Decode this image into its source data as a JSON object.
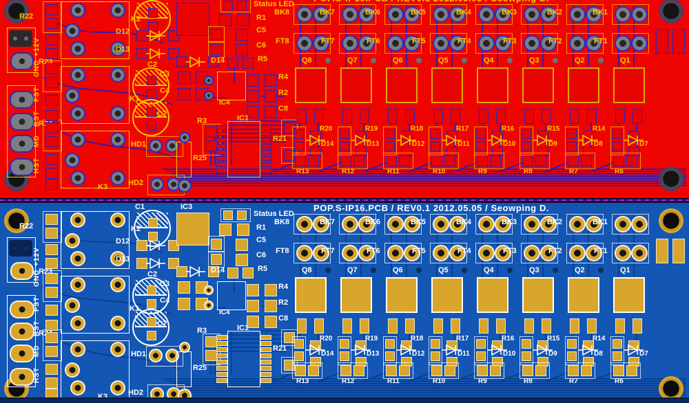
{
  "board_title": "POP.S-IP16.PCB / REV0.1 2012.05.05 / Seowping D.",
  "status_led_label": "Status LED",
  "left_labels": {
    "r22": "R22",
    "plus12v": "+12V",
    "gnd": "GND",
    "r23": "R23",
    "fst": "FST",
    "bst": "BST",
    "r24": "R24",
    "md": "MD",
    "hst": "HST"
  },
  "component_labels": {
    "c1": "C1",
    "ic3": "IC3",
    "k2": "K2",
    "d12": "D12",
    "d13": "D13",
    "c2": "C2",
    "c3": "C3",
    "c4": "C4",
    "k1": "K1",
    "c7": "C7",
    "hd1": "HD1",
    "hd2": "HD2",
    "k3": "K3",
    "r1": "R1",
    "c5": "C5",
    "c6": "C6",
    "d14": "D14",
    "r5": "R5",
    "ic4": "IC4",
    "r4": "R4",
    "r2": "R2",
    "c8": "C8",
    "r3": "R3",
    "ic1": "IC1",
    "r25": "R25",
    "r21": "R21"
  },
  "channels": [
    {
      "bk": "BK8",
      "ft": "FT8",
      "q": "Q8",
      "r_top": "R20",
      "d": "D14",
      "r_bot": "R13"
    },
    {
      "bk": "BK7",
      "ft": "FT7",
      "q": "Q7",
      "r_top": "R19",
      "d": "D13",
      "r_bot": "R12"
    },
    {
      "bk": "BK6",
      "ft": "FT6",
      "q": "Q6",
      "r_top": "R18",
      "d": "D12",
      "r_bot": "R11"
    },
    {
      "bk": "BK5",
      "ft": "FT5",
      "q": "Q5",
      "r_top": "R17",
      "d": "D11",
      "r_bot": "R10"
    },
    {
      "bk": "BK4",
      "ft": "FT4",
      "q": "Q4",
      "r_top": "R16",
      "d": "D10",
      "r_bot": "R9"
    },
    {
      "bk": "BK3",
      "ft": "FT3",
      "q": "Q3",
      "r_top": "R15",
      "d": "D9",
      "r_bot": "R8"
    },
    {
      "bk": "BK2",
      "ft": "FT2",
      "q": "Q2",
      "r_top": "R14",
      "d": "D8",
      "r_bot": "R7"
    },
    {
      "bk": "BK1",
      "ft": "FT1",
      "q": "Q1",
      "r_top": "",
      "d": "D7",
      "r_bot": "R6"
    }
  ],
  "colors": {
    "red_board_bg": "#ee0400",
    "red_silkscreen": "#ffc400",
    "red_trace": "#1d1dc0",
    "blue_board_bg": "#1356b4",
    "blue_silkscreen": "#ffffff",
    "blue_trace": "#0b3c86",
    "pad_gold": "#d8a62c",
    "pad_gray": "#7d7d84"
  }
}
